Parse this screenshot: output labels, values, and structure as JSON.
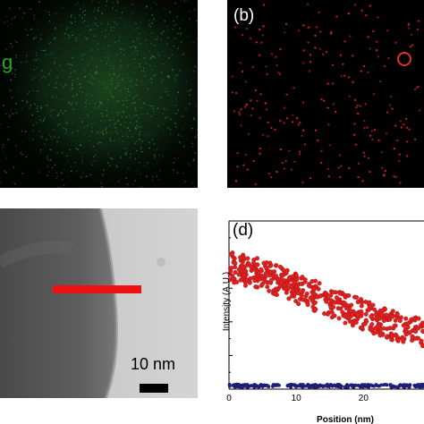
{
  "panel_a": {
    "element_label": "g",
    "map_color": "#2a9a2a"
  },
  "panel_b": {
    "label": "(b)",
    "dot_color": "#d02020",
    "marker_color": "#e03030"
  },
  "panel_c": {
    "scale_bar_text": "10 nm",
    "line_color": "#ee1111"
  },
  "panel_d": {
    "label": "(d)"
  },
  "chart_data": {
    "type": "scatter",
    "title": "",
    "xlabel": "Position (nm)",
    "ylabel": "Intensity (A.U.)",
    "xlim": [
      0,
      29
    ],
    "x_ticks": [
      0,
      10,
      20
    ],
    "ylim": [
      0,
      1
    ],
    "grid": false,
    "series": [
      {
        "color": "#dd2222",
        "trend": {
          "x": [
            0,
            5,
            10,
            15,
            20,
            25,
            29
          ],
          "y": [
            0.73,
            0.68,
            0.6,
            0.52,
            0.44,
            0.37,
            0.33
          ]
        },
        "spread": 0.09
      },
      {
        "color": "#22228a",
        "trend": {
          "x": [
            0,
            10,
            20,
            29
          ],
          "y": [
            0.02,
            0.02,
            0.02,
            0.02
          ]
        },
        "spread": 0.008
      }
    ]
  }
}
